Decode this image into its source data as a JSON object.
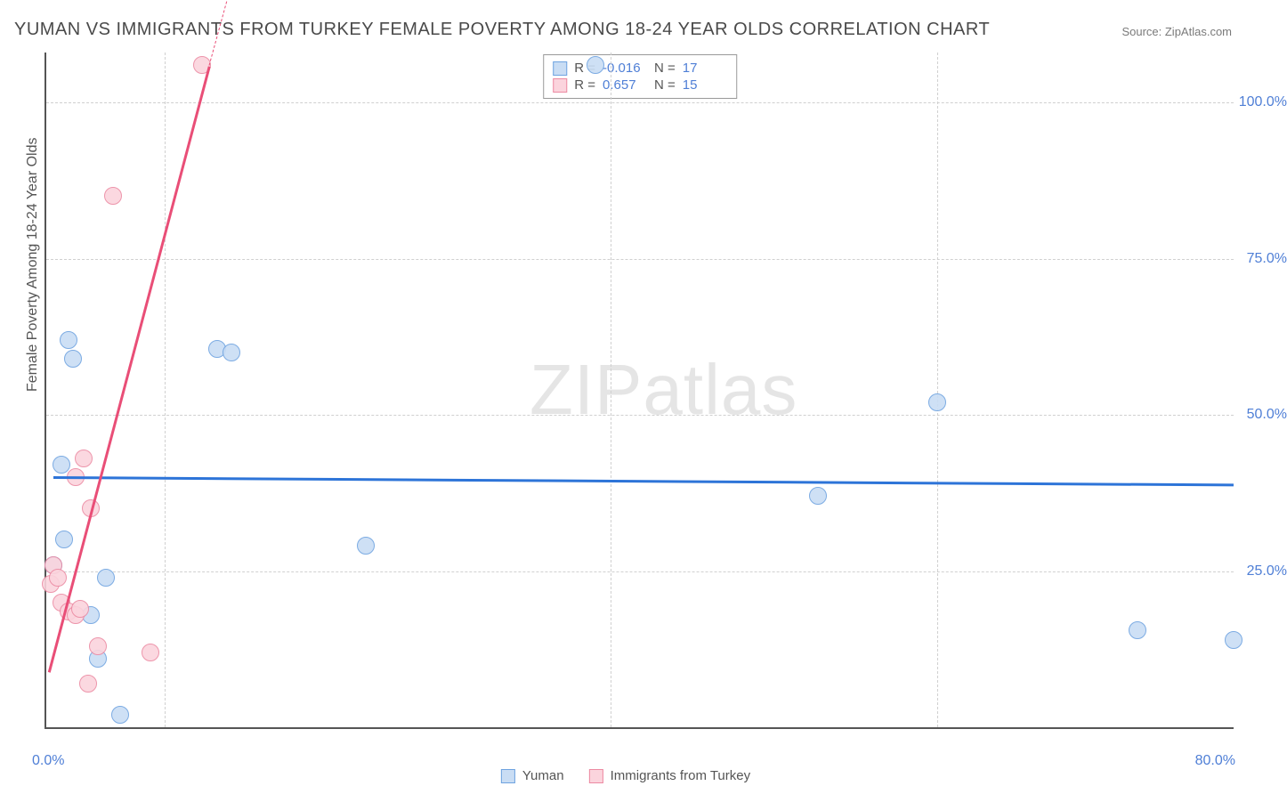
{
  "title": "YUMAN VS IMMIGRANTS FROM TURKEY FEMALE POVERTY AMONG 18-24 YEAR OLDS CORRELATION CHART",
  "source_label": "Source: ZipAtlas.com",
  "y_axis_title": "Female Poverty Among 18-24 Year Olds",
  "watermark_a": "ZIP",
  "watermark_b": "atlas",
  "chart": {
    "type": "scatter",
    "xlim": [
      0,
      80
    ],
    "ylim": [
      0,
      108
    ],
    "x_ticks": [
      0,
      80
    ],
    "x_tick_labels": [
      "0.0%",
      "80.0%"
    ],
    "x_minor_ticks": [
      8,
      38,
      60
    ],
    "y_ticks": [
      25,
      50,
      75,
      100
    ],
    "y_tick_labels": [
      "25.0%",
      "50.0%",
      "75.0%",
      "100.0%"
    ],
    "grid_color": "#d0d0d0",
    "background_color": "#ffffff",
    "axis_color": "#555555",
    "label_color": "#4f7fd6",
    "label_fontsize": 16,
    "title_fontsize": 20,
    "marker_radius": 10,
    "marker_border_width": 1.5,
    "series": [
      {
        "name": "Yuman",
        "fill": "#c9ddf4",
        "stroke": "#6ea3e0",
        "points": [
          [
            0.5,
            26
          ],
          [
            1.5,
            62
          ],
          [
            1.8,
            59
          ],
          [
            3.5,
            11
          ],
          [
            4.0,
            24
          ],
          [
            5.0,
            2
          ],
          [
            11.5,
            60.5
          ],
          [
            12.5,
            60
          ],
          [
            21.5,
            29
          ],
          [
            37.0,
            106
          ],
          [
            52.0,
            37
          ],
          [
            60.0,
            52
          ],
          [
            73.5,
            15.5
          ],
          [
            80.0,
            14
          ],
          [
            1.0,
            42
          ],
          [
            1.2,
            30
          ],
          [
            3.0,
            18
          ]
        ],
        "trend": {
          "x1": 0.5,
          "y1": 40.2,
          "x2": 80,
          "y2": 39.0,
          "color": "#2d74d8",
          "width": 2.5,
          "dash": false
        }
      },
      {
        "name": "Immigrants from Turkey",
        "fill": "#fbd4dd",
        "stroke": "#ec8aa2",
        "points": [
          [
            0.3,
            23
          ],
          [
            0.5,
            26
          ],
          [
            0.8,
            24
          ],
          [
            1.0,
            20
          ],
          [
            1.5,
            18.5
          ],
          [
            2.0,
            18
          ],
          [
            2.3,
            19
          ],
          [
            2.0,
            40
          ],
          [
            2.5,
            43
          ],
          [
            3.0,
            35
          ],
          [
            3.5,
            13
          ],
          [
            4.5,
            85
          ],
          [
            7.0,
            12
          ],
          [
            2.8,
            7
          ],
          [
            10.5,
            106
          ]
        ],
        "trend": {
          "x1": 0.2,
          "y1": 9,
          "x2": 11,
          "y2": 106,
          "color": "#e94e77",
          "width": 2.5,
          "dash": false
        },
        "trend_ext": {
          "x1": 11,
          "y1": 106,
          "x2": 12.5,
          "y2": 119,
          "color": "#e94e77",
          "width": 1.5,
          "dash": true
        }
      }
    ],
    "stats": [
      {
        "swatch_fill": "#c9ddf4",
        "swatch_stroke": "#6ea3e0",
        "r_label": "R =",
        "r_value": "-0.016",
        "n_label": "N =",
        "n_value": "17"
      },
      {
        "swatch_fill": "#fbd4dd",
        "swatch_stroke": "#ec8aa2",
        "r_label": "R =",
        "r_value": "0.657",
        "n_label": "N =",
        "n_value": "15"
      }
    ],
    "bottom_legend": [
      {
        "swatch_fill": "#c9ddf4",
        "swatch_stroke": "#6ea3e0",
        "label": "Yuman"
      },
      {
        "swatch_fill": "#fbd4dd",
        "swatch_stroke": "#ec8aa2",
        "label": "Immigrants from Turkey"
      }
    ]
  }
}
